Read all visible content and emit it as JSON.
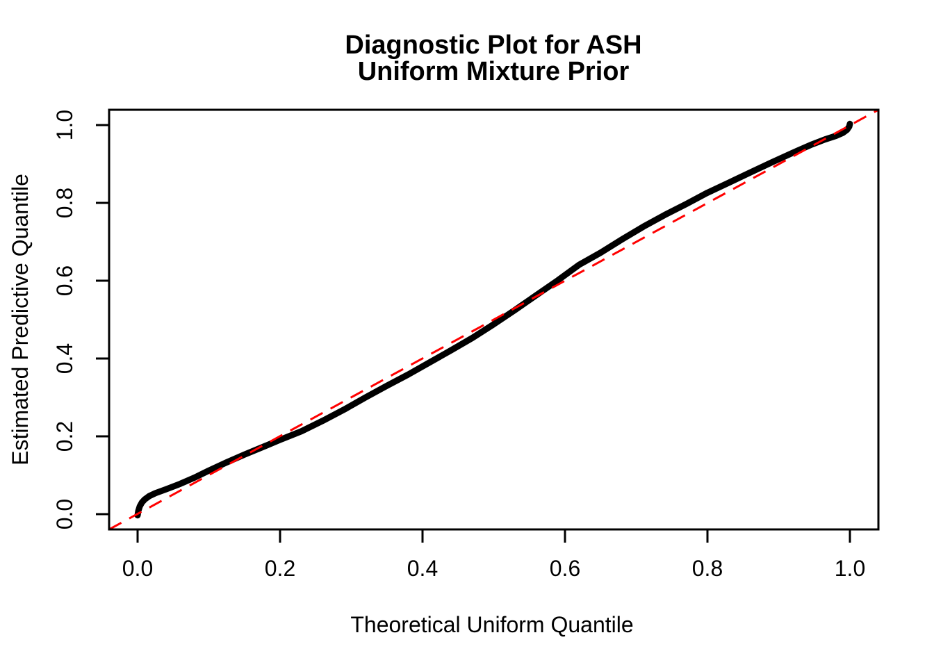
{
  "title": {
    "line1": "Diagnostic Plot for ASH",
    "line2": "Uniform Mixture Prior"
  },
  "colors": {
    "curve": "#000000",
    "reference_line": "#FF0000",
    "axis": "#000000",
    "background": "#FFFFFF"
  },
  "chart_data": {
    "type": "scatter",
    "title": "Diagnostic Plot for ASH\nUniform Mixture Prior",
    "xlabel": "Theoretical Uniform Quantile",
    "ylabel": "Estimated Predictive Quantile",
    "xlim": [
      -0.04,
      1.04
    ],
    "ylim": [
      -0.04,
      1.04
    ],
    "grid": false,
    "legend": "none",
    "x_ticks": [
      0.0,
      0.2,
      0.4,
      0.6,
      0.8,
      1.0
    ],
    "x_tick_labels": [
      "0.0",
      "0.2",
      "0.4",
      "0.6",
      "0.8",
      "1.0"
    ],
    "y_ticks": [
      0.0,
      0.2,
      0.4,
      0.6,
      0.8,
      1.0
    ],
    "y_tick_labels": [
      "0.0",
      "0.2",
      "0.4",
      "0.6",
      "0.8",
      "1.0"
    ],
    "series": [
      {
        "name": "estimated-predictive-quantile-curve",
        "color": "#000000",
        "style": "thick-solid",
        "points": [
          [
            0.0,
            -0.003
          ],
          [
            0.001,
            0.008
          ],
          [
            0.003,
            0.02
          ],
          [
            0.006,
            0.03
          ],
          [
            0.01,
            0.038
          ],
          [
            0.016,
            0.046
          ],
          [
            0.025,
            0.054
          ],
          [
            0.04,
            0.064
          ],
          [
            0.06,
            0.078
          ],
          [
            0.08,
            0.094
          ],
          [
            0.1,
            0.112
          ],
          [
            0.125,
            0.133
          ],
          [
            0.15,
            0.153
          ],
          [
            0.175,
            0.172
          ],
          [
            0.2,
            0.191
          ],
          [
            0.23,
            0.213
          ],
          [
            0.26,
            0.24
          ],
          [
            0.29,
            0.269
          ],
          [
            0.32,
            0.3
          ],
          [
            0.35,
            0.33
          ],
          [
            0.38,
            0.359
          ],
          [
            0.41,
            0.39
          ],
          [
            0.44,
            0.421
          ],
          [
            0.47,
            0.453
          ],
          [
            0.5,
            0.488
          ],
          [
            0.53,
            0.525
          ],
          [
            0.56,
            0.563
          ],
          [
            0.59,
            0.601
          ],
          [
            0.62,
            0.641
          ],
          [
            0.65,
            0.672
          ],
          [
            0.68,
            0.706
          ],
          [
            0.71,
            0.739
          ],
          [
            0.74,
            0.769
          ],
          [
            0.77,
            0.797
          ],
          [
            0.8,
            0.826
          ],
          [
            0.83,
            0.852
          ],
          [
            0.86,
            0.878
          ],
          [
            0.89,
            0.904
          ],
          [
            0.92,
            0.929
          ],
          [
            0.945,
            0.949
          ],
          [
            0.965,
            0.963
          ],
          [
            0.98,
            0.972
          ],
          [
            0.99,
            0.98
          ],
          [
            0.996,
            0.988
          ],
          [
            0.999,
            0.996
          ],
          [
            1.0,
            1.003
          ]
        ]
      }
    ],
    "reference_line": {
      "name": "identity-line",
      "slope": 1,
      "intercept": 0,
      "color": "#FF0000",
      "style": "dashed"
    }
  }
}
